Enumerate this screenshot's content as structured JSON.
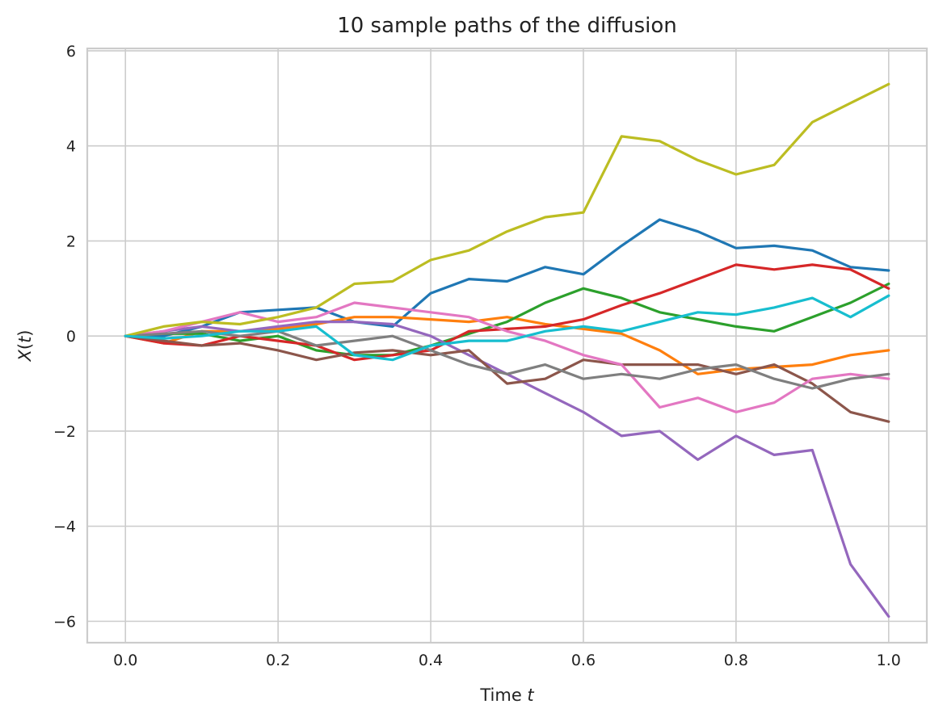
{
  "chart_data": {
    "type": "line",
    "title": "10 sample paths of the diffusion",
    "xlabel_prefix": "Time ",
    "xlabel_var": "t",
    "ylabel_var": "X",
    "ylabel_arg": "t",
    "xlim": [
      -0.05,
      1.05
    ],
    "ylim": [
      -6.45,
      6.05
    ],
    "xticks": [
      0.0,
      0.2,
      0.4,
      0.6,
      0.8,
      1.0
    ],
    "xtick_labels": [
      "0.0",
      "0.2",
      "0.4",
      "0.6",
      "0.8",
      "1.0"
    ],
    "yticks": [
      -6,
      -4,
      -2,
      0,
      2,
      4,
      6
    ],
    "ytick_labels": [
      "−6",
      "−4",
      "−2",
      "0",
      "2",
      "4",
      "6"
    ],
    "grid": true,
    "x": [
      0.0,
      0.05,
      0.1,
      0.15,
      0.2,
      0.25,
      0.3,
      0.35,
      0.4,
      0.45,
      0.5,
      0.55,
      0.6,
      0.65,
      0.7,
      0.75,
      0.8,
      0.85,
      0.9,
      0.95,
      1.0
    ],
    "series": [
      {
        "color": "#1f77b4",
        "values": [
          0.0,
          0.0,
          0.2,
          0.5,
          0.55,
          0.6,
          0.3,
          0.2,
          0.9,
          1.2,
          1.15,
          1.45,
          1.3,
          1.9,
          2.45,
          2.2,
          1.85,
          1.9,
          1.8,
          1.45,
          1.38
        ]
      },
      {
        "color": "#ff7f0e",
        "values": [
          0.0,
          -0.15,
          0.1,
          0.1,
          0.15,
          0.25,
          0.4,
          0.4,
          0.35,
          0.3,
          0.4,
          0.25,
          0.15,
          0.05,
          -0.3,
          -0.8,
          -0.7,
          -0.65,
          -0.6,
          -0.4,
          -0.3
        ]
      },
      {
        "color": "#2ca02c",
        "values": [
          0.0,
          0.05,
          0.05,
          -0.1,
          0.0,
          -0.3,
          -0.4,
          -0.4,
          -0.2,
          0.05,
          0.3,
          0.7,
          1.0,
          0.8,
          0.5,
          0.35,
          0.2,
          0.1,
          0.4,
          0.7,
          1.1
        ]
      },
      {
        "color": "#d62728",
        "values": [
          0.0,
          -0.15,
          -0.2,
          0.0,
          -0.1,
          -0.2,
          -0.5,
          -0.4,
          -0.3,
          0.1,
          0.15,
          0.2,
          0.35,
          0.65,
          0.9,
          1.2,
          1.5,
          1.4,
          1.5,
          1.4,
          1.0
        ]
      },
      {
        "color": "#9467bd",
        "values": [
          0.0,
          0.1,
          0.2,
          0.1,
          0.2,
          0.3,
          0.3,
          0.25,
          0.0,
          -0.4,
          -0.8,
          -1.2,
          -1.6,
          -2.1,
          -2.0,
          -2.6,
          -2.1,
          -2.5,
          -2.4,
          -4.8,
          -5.9
        ]
      },
      {
        "color": "#8c564b",
        "values": [
          0.0,
          -0.1,
          -0.2,
          -0.15,
          -0.3,
          -0.5,
          -0.35,
          -0.3,
          -0.4,
          -0.3,
          -1.0,
          -0.9,
          -0.5,
          -0.6,
          -0.6,
          -0.6,
          -0.8,
          -0.6,
          -1.0,
          -1.6,
          -1.8
        ]
      },
      {
        "color": "#e377c2",
        "values": [
          0.0,
          0.1,
          0.3,
          0.5,
          0.3,
          0.4,
          0.7,
          0.6,
          0.5,
          0.4,
          0.1,
          -0.1,
          -0.4,
          -0.6,
          -1.5,
          -1.3,
          -1.6,
          -1.4,
          -0.9,
          -0.8,
          -0.9
        ]
      },
      {
        "color": "#7f7f7f",
        "values": [
          0.0,
          0.05,
          0.1,
          0.0,
          0.1,
          -0.2,
          -0.1,
          0.0,
          -0.3,
          -0.6,
          -0.8,
          -0.6,
          -0.9,
          -0.8,
          -0.9,
          -0.7,
          -0.6,
          -0.9,
          -1.1,
          -0.9,
          -0.8
        ]
      },
      {
        "color": "#bcbd22",
        "values": [
          0.0,
          0.2,
          0.3,
          0.25,
          0.4,
          0.6,
          1.1,
          1.15,
          1.6,
          1.8,
          2.2,
          2.5,
          2.6,
          4.2,
          4.1,
          3.7,
          3.4,
          3.6,
          4.5,
          4.9,
          5.3
        ]
      },
      {
        "color": "#17becf",
        "values": [
          0.0,
          -0.05,
          0.0,
          0.1,
          0.1,
          0.2,
          -0.4,
          -0.5,
          -0.2,
          -0.1,
          -0.1,
          0.1,
          0.2,
          0.1,
          0.3,
          0.5,
          0.45,
          0.6,
          0.8,
          0.4,
          0.85
        ]
      }
    ]
  }
}
